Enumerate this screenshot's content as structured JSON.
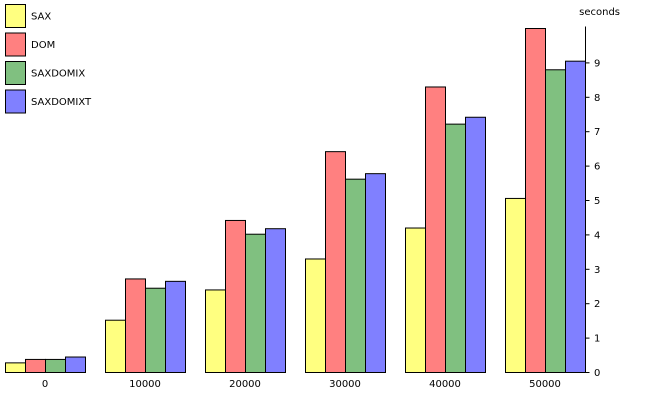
{
  "chart_data": {
    "type": "bar",
    "title": "",
    "xlabel": "",
    "ylabel": "seconds",
    "categories": [
      "0",
      "10000",
      "20000",
      "30000",
      "40000",
      "50000"
    ],
    "y_ticks": [
      "0",
      "1",
      "2",
      "3",
      "4",
      "5",
      "6",
      "7",
      "8",
      "9"
    ],
    "ylim": [
      0,
      10
    ],
    "grid": false,
    "legend_position": "top-left",
    "series": [
      {
        "name": "SAX",
        "color": "#ffff80",
        "values": [
          0.28,
          1.52,
          2.4,
          3.3,
          4.2,
          5.06
        ]
      },
      {
        "name": "DOM",
        "color": "#ff8080",
        "values": [
          0.38,
          2.72,
          4.42,
          6.42,
          8.3,
          10.0
        ]
      },
      {
        "name": "SAXDOMIX",
        "color": "#80c080",
        "values": [
          0.38,
          2.45,
          4.02,
          5.62,
          7.22,
          8.8
        ]
      },
      {
        "name": "SAXDOMIXT",
        "color": "#8080ff",
        "values": [
          0.45,
          2.65,
          4.18,
          5.78,
          7.42,
          9.05
        ]
      }
    ]
  }
}
